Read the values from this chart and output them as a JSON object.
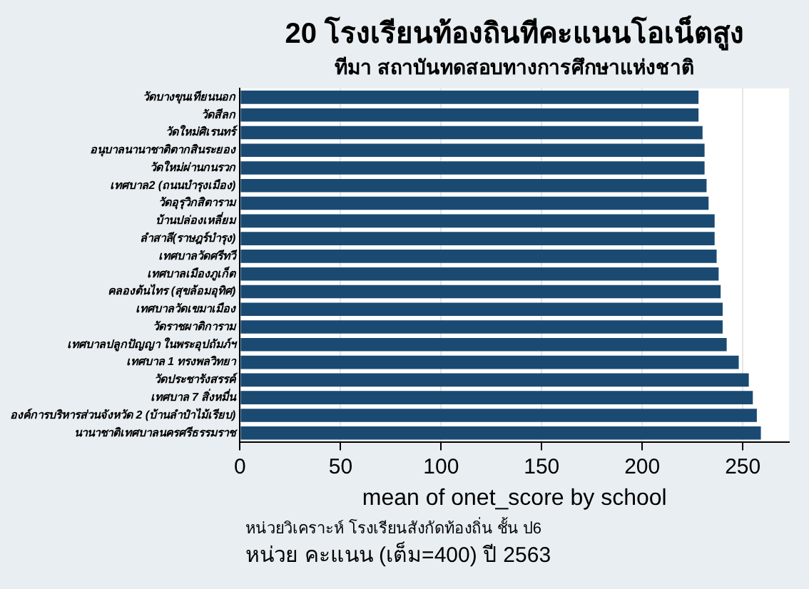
{
  "chart_data": {
    "type": "bar",
    "orientation": "horizontal",
    "title": "20 โรงเรียนท้องถินทีคะแนนโอเน็ตสูง",
    "subtitle": "ทีมา สถาบันทดสอบทางการศึกษาแห่งชาติ",
    "xlabel": "mean of onet_score by school",
    "categories": [
      "วัดบางขุนเทียนนอก",
      "วัดสีลก",
      "วัดใหม่ศิเรนทร์",
      "อนุบาลนานาชาติตากสินระยอง",
      "วัดใหม่ผ่านกนรวก",
      "เทศบาล2 (ถนนบำรุงเมือง)",
      "วัดอุรุวิกสิตาราม",
      "บ้านปล่องเหลี่ยม",
      "ลำสาลี(ราษฎร์บำรุง)",
      "เทศบาลวัดศรีทวี",
      "เทศบาลเมืองภูเก็ต",
      "คลองต้นไทร (สุขล้อมอุทิศ)",
      "เทศบาลวัดเขมาเมือง",
      "วัดราชผาติการาม",
      "เทศบาลปลูกปัญญา ในพระอุปถัมภ์ฯ",
      "เทศบาล 1 ทรงพลวิทยา",
      "วัดประชารังสรรค์",
      "เทศบาล 7 สิ่งหมื่น",
      "องค์การบริหารส่วนจังหวัด 2 (บ้านลำปำไม้เรียบ)",
      "นานาชาติเทศบาลนครศรีธรรมราช"
    ],
    "values": [
      228,
      228,
      230,
      231,
      231,
      232,
      233,
      236,
      236,
      237,
      238,
      239,
      240,
      240,
      242,
      248,
      253,
      255,
      257,
      259
    ],
    "color": "#1a4a72",
    "xlim": [
      0,
      273
    ],
    "xticks": [
      0,
      50,
      100,
      150,
      200,
      250
    ],
    "grid": "x",
    "annotations": [
      "หน่วยวิเคราะห์ โรงเรียนสังกัดท้องถิ่น ชั้น ป6",
      "หน่วย คะแนน (เต็ม=400) ปี 2563"
    ]
  }
}
